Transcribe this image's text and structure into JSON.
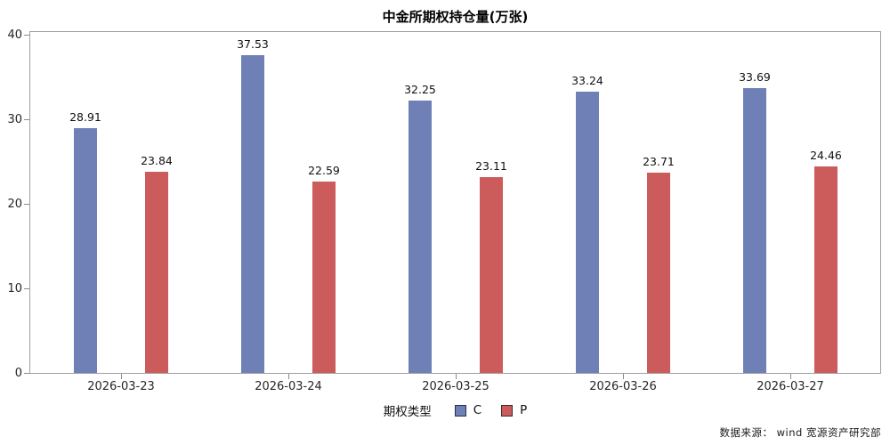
{
  "title": "中金所期权持仓量(万张)",
  "legend": {
    "title": "期权类型",
    "items": [
      {
        "label": "C",
        "color": "#6E80B5"
      },
      {
        "label": "P",
        "color": "#CC5B5C"
      }
    ]
  },
  "footer": {
    "source_text": "数据来源：  wind  宽源资产研究部"
  },
  "colors": {
    "series_c": "#6E80B5",
    "series_p": "#CC5B5C",
    "axis_border": "#a0a0a0"
  },
  "chart_data": {
    "type": "bar",
    "title": "中金所期权持仓量(万张)",
    "categories": [
      "2026-03-23",
      "2026-03-24",
      "2026-03-25",
      "2026-03-26",
      "2026-03-27"
    ],
    "series": [
      {
        "name": "C",
        "color": "#6E80B5",
        "values": [
          28.91,
          37.53,
          32.25,
          33.24,
          33.69
        ]
      },
      {
        "name": "P",
        "color": "#CC5B5C",
        "values": [
          23.84,
          22.59,
          23.11,
          23.71,
          24.46
        ]
      }
    ],
    "value_labels": [
      "28.91",
      "37.53",
      "32.25",
      "33.24",
      "33.69",
      "23.84",
      "22.59",
      "23.11",
      "23.71",
      "24.46"
    ],
    "xlabel": "",
    "ylabel": "",
    "ylim": [
      0,
      40
    ],
    "yticks": [
      0,
      10,
      20,
      30,
      40
    ],
    "grid": false,
    "legend_position": "bottom",
    "legend_title": "期权类型"
  }
}
